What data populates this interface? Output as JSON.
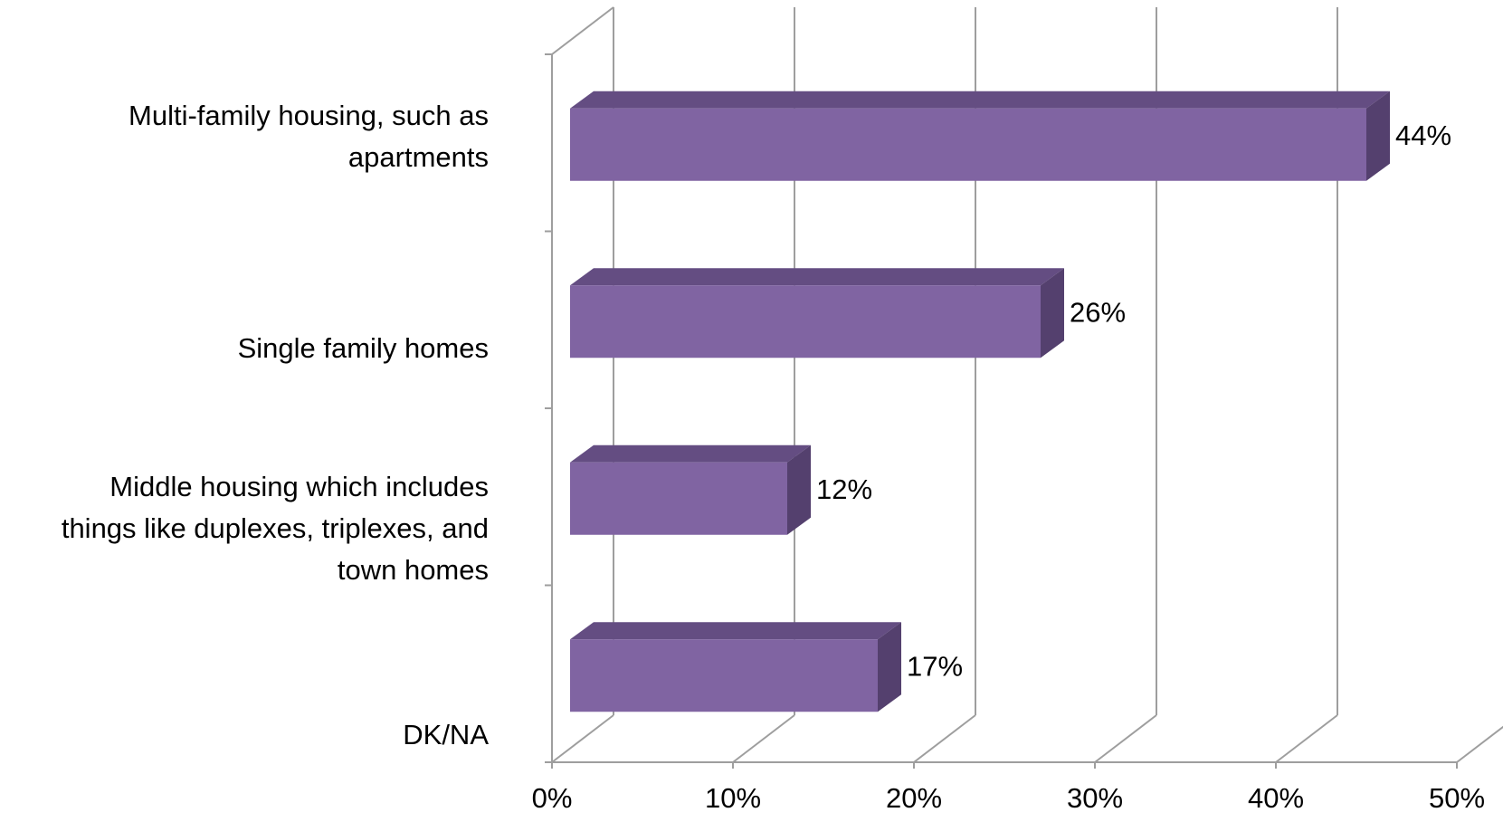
{
  "chart_data": {
    "type": "bar",
    "orientation": "horizontal",
    "style": "3d",
    "title": "",
    "xlabel": "",
    "ylabel": "",
    "categories": [
      [
        "Multi-family housing, such as",
        "apartments"
      ],
      [
        "Single family homes"
      ],
      [
        "Middle housing which includes",
        "things like duplexes, triplexes, and",
        "town homes"
      ],
      [
        "DK/NA"
      ]
    ],
    "values": [
      44,
      26,
      12,
      17
    ],
    "data_labels": [
      "44%",
      "26%",
      "12%",
      "17%"
    ],
    "xlim": [
      0,
      50
    ],
    "x_ticks": [
      "0%",
      "10%",
      "20%",
      "30%",
      "40%",
      "50%"
    ],
    "grid": true,
    "legend": "none",
    "colors": {
      "bar_front": "#8064a2",
      "bar_top": "#644d82",
      "bar_side": "#54406e",
      "grid": "#9e9e9e",
      "text": "#000000"
    }
  }
}
